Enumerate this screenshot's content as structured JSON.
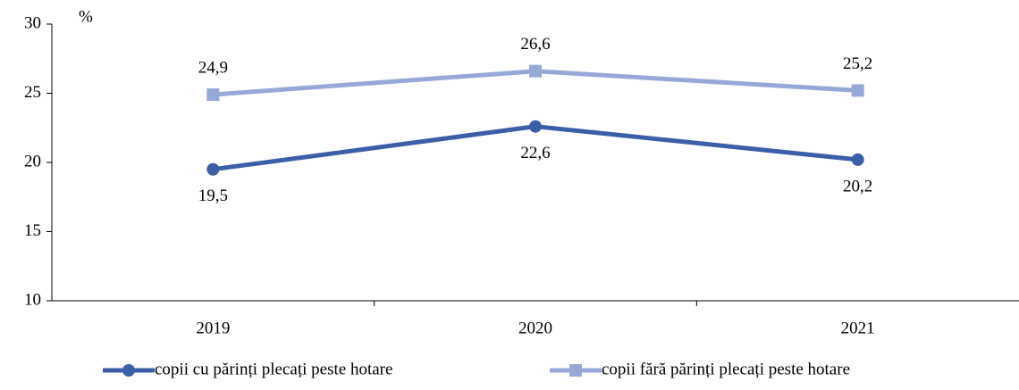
{
  "chart_data": {
    "type": "line",
    "y_unit_label": "%",
    "categories": [
      "2019",
      "2020",
      "2021"
    ],
    "series": [
      {
        "name": "copii cu părinți plecați peste hotare",
        "color": "#3a5ea8",
        "marker": "circle",
        "values": [
          19.5,
          22.6,
          20.2
        ],
        "value_labels": [
          "19,5",
          "22,6",
          "20,2"
        ]
      },
      {
        "name": "copii fără părinți plecați peste hotare",
        "color": "#96a8d8",
        "marker": "square",
        "values": [
          24.9,
          26.6,
          25.2
        ],
        "value_labels": [
          "24,9",
          "26,6",
          "25,2"
        ]
      }
    ],
    "ylim": [
      10,
      30
    ],
    "yticks": [
      10,
      15,
      20,
      25,
      30
    ],
    "grid": false,
    "legend": "bottom"
  }
}
